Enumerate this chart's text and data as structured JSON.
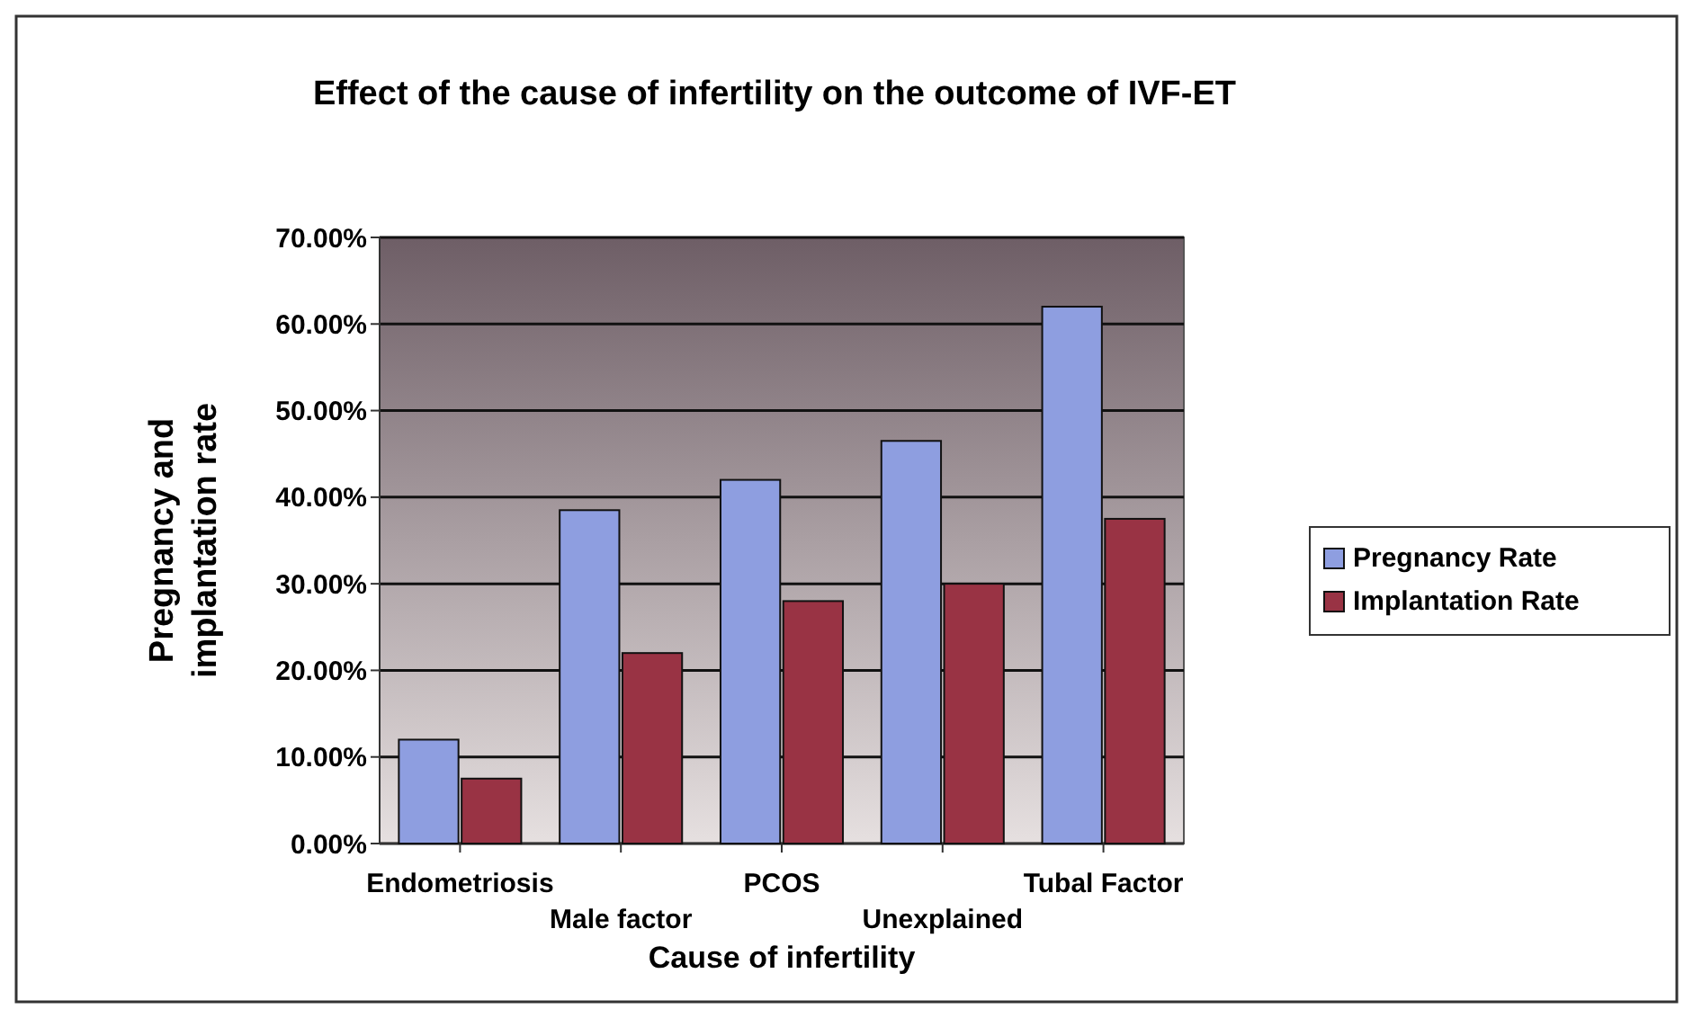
{
  "chart_data": {
    "type": "bar",
    "title": "Effect of the cause of infertility on the outcome of IVF-ET",
    "xlabel": "Cause of infertility",
    "ylabel": "Pregnancy and implantation rate",
    "categories": [
      "Endometriosis",
      "Male factor",
      "PCOS",
      "Unexplained",
      "Tubal Factor"
    ],
    "series": [
      {
        "name": "Pregnancy Rate",
        "color": "#8e9ee0",
        "values": [
          12,
          38.5,
          42,
          46.5,
          62
        ]
      },
      {
        "name": "Implantation Rate",
        "color": "#993344",
        "values": [
          7.5,
          22,
          28,
          30,
          37.5
        ]
      }
    ],
    "ylim": [
      0,
      70
    ],
    "yticks": [
      {
        "value": 0,
        "label": "0.00%"
      },
      {
        "value": 10,
        "label": "10.00%"
      },
      {
        "value": 20,
        "label": "20.00%"
      },
      {
        "value": 30,
        "label": "30.00%"
      },
      {
        "value": 40,
        "label": "40.00%"
      },
      {
        "value": 50,
        "label": "50.00%"
      },
      {
        "value": 60,
        "label": "60.00%"
      },
      {
        "value": 70,
        "label": "70.00%"
      }
    ],
    "grid": "y",
    "legend": "right"
  }
}
